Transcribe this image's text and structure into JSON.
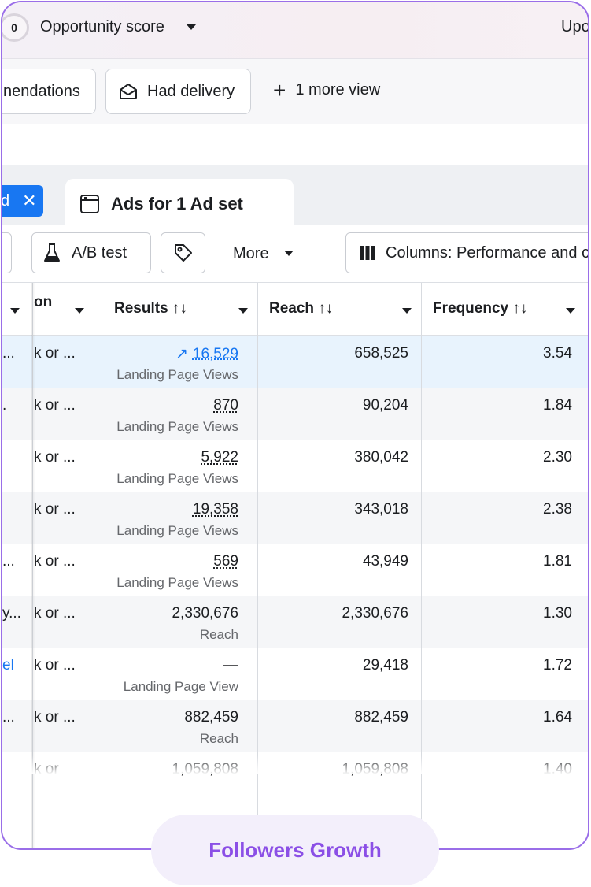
{
  "topbar": {
    "score_value": "0",
    "opportunity_label": "Opportunity score",
    "right_label": "Upo"
  },
  "views": {
    "recommendations_label": "nendations",
    "had_delivery_label": "Had delivery",
    "more_view_label": "1 more view"
  },
  "tabs": {
    "selected_letter": "d",
    "ads_tab_label": "Ads for 1 Ad set"
  },
  "toolbar": {
    "ab_test_label": "A/B test",
    "more_label": "More",
    "columns_label": "Columns: Performance and c"
  },
  "table": {
    "headers": {
      "col1": "on",
      "results": "Results ↑↓",
      "reach": "Reach ↑↓",
      "frequency": "Frequency ↑↓"
    },
    "rows": [
      {
        "c0": "...",
        "c1": "k or ...",
        "results": "16,529",
        "results_sub": "Landing Page Views",
        "reach": "658,525",
        "frequency": "3.54"
      },
      {
        "c0": ".",
        "c1": "k or ...",
        "results": "870",
        "results_sub": "Landing Page Views",
        "reach": "90,204",
        "frequency": "1.84"
      },
      {
        "c0": "",
        "c1": "k or ...",
        "results": "5,922",
        "results_sub": "Landing Page Views",
        "reach": "380,042",
        "frequency": "2.30"
      },
      {
        "c0": "",
        "c1": "k or ...",
        "results": "19,358",
        "results_sub": "Landing Page Views",
        "reach": "343,018",
        "frequency": "2.38"
      },
      {
        "c0": "...",
        "c1": "k or ...",
        "results": "569",
        "results_sub": "Landing Page Views",
        "reach": "43,949",
        "frequency": "1.81"
      },
      {
        "c0": "y...",
        "c1": "k or ...",
        "results": "2,330,676",
        "results_sub": "Reach",
        "reach": "2,330,676",
        "frequency": "1.30"
      },
      {
        "c0": "el",
        "c1": "k or ...",
        "results": "—",
        "results_sub": "Landing Page View",
        "reach": "29,418",
        "frequency": "1.72"
      },
      {
        "c0": "...",
        "c1": "k or ...",
        "results": "882,459",
        "results_sub": "Reach",
        "reach": "882,459",
        "frequency": "1.64"
      },
      {
        "c0": "",
        "c1": "k or",
        "results": "1,059,808",
        "results_sub": "",
        "reach": "1,059,808",
        "frequency": "1.40"
      }
    ]
  },
  "footer": {
    "pill_label": "Followers Growth"
  },
  "colors": {
    "accent_purple": "#9a6ee8",
    "link_blue": "#1877f2",
    "highlight_row": "#e8f3fd"
  }
}
